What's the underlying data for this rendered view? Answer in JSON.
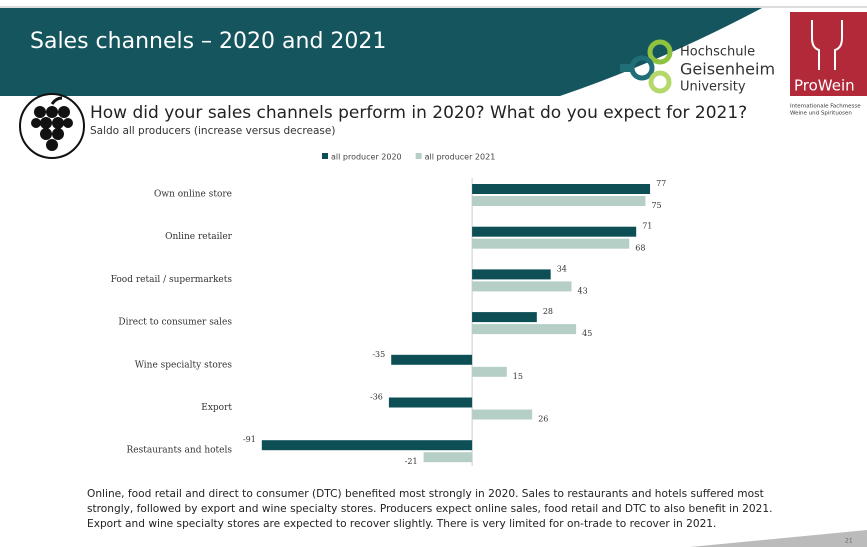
{
  "header": {
    "title": "Sales channels – 2020 and 2021"
  },
  "logos": {
    "university": [
      "Hochschule",
      "Geisenheim",
      "University"
    ],
    "fair": "ProWein",
    "fair_tagline": [
      "Internationale Fachmesse",
      "Weine und Spirituosen"
    ]
  },
  "chart_data": {
    "type": "bar",
    "orientation": "horizontal",
    "title": "How did your sales channels perform in 2020? What do you expect for 2021?",
    "subtitle": "Saldo all producers (increase versus decrease)",
    "categories": [
      "Own online store",
      "Online retailer",
      "Food retail / supermarkets",
      "Direct to consumer sales",
      "Wine specialty stores",
      "Export",
      "Restaurants and hotels"
    ],
    "series": [
      {
        "name": "all producer 2020",
        "color": "#0e4f56",
        "values": [
          77,
          71,
          34,
          28,
          -35,
          -36,
          -91
        ]
      },
      {
        "name": "all producer 2021",
        "color": "#b5cfc6",
        "values": [
          75,
          68,
          43,
          45,
          15,
          26,
          -21
        ]
      }
    ],
    "xlim": [
      -100,
      80
    ],
    "legend": "top"
  },
  "footnote": "Online, food retail and direct to consumer (DTC) benefited most strongly in 2020. Sales to restaurants and hotels suffered most strongly, followed by export and wine specialty stores. Producers expect online sales, food retail and DTC to also benefit in 2021. Export and wine specialty stores are expected to recover slightly. There is very limited for on-trade to recover in 2021.",
  "page_number": "21"
}
